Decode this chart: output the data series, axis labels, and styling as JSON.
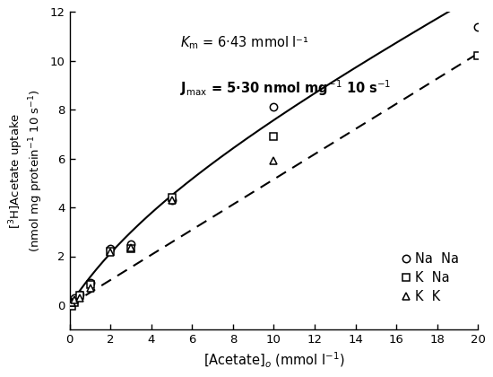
{
  "Km": 6.43,
  "Jmax": 5.3,
  "k_linear": 0.435,
  "NaNa_x": [
    0.1,
    0.25,
    0.5,
    1.0,
    2.0,
    3.0,
    5.0,
    10.0,
    20.0
  ],
  "NaNa_y": [
    0.15,
    0.3,
    0.45,
    0.9,
    2.3,
    2.5,
    4.3,
    8.1,
    11.4
  ],
  "KNa_x": [
    0.1,
    0.25,
    0.5,
    1.0,
    2.0,
    3.0,
    5.0,
    10.0,
    20.0
  ],
  "KNa_y": [
    -0.05,
    0.1,
    0.4,
    0.85,
    2.2,
    2.3,
    4.4,
    6.9,
    10.2
  ],
  "KK_x": [
    0.1,
    0.25,
    0.5,
    1.0,
    2.0,
    3.0,
    5.0,
    10.0
  ],
  "KK_y": [
    0.1,
    0.2,
    0.3,
    0.7,
    2.15,
    2.35,
    4.3,
    5.9
  ],
  "dashed_slope": 0.515,
  "dashed_intercept": 0.0,
  "xlim": [
    0,
    20
  ],
  "ylim": [
    -1,
    12
  ],
  "xticks": [
    0,
    2,
    4,
    6,
    8,
    10,
    12,
    14,
    16,
    18,
    20
  ],
  "yticks": [
    0,
    2,
    4,
    6,
    8,
    10,
    12
  ],
  "xlabel": "[Acetate]$_o$ (mmol l$^{-1}$)",
  "ylabel": "[$^3$H]Acetate uptake\n(nmol mg protein$^{-1}$ 10 s$^{-1}$)",
  "km_label": "$K_{\\rm m}$ = 6·43 mmol l⁻¹",
  "jmax_label": "J$_{\\rm max}$ = 5·30 nmol mg$^{-1}$ 10 s$^{-1}$",
  "legend_labels": [
    "Na  Na",
    "K  Na",
    "K  K"
  ],
  "bg_color": "#ffffff",
  "fig_width": 5.5,
  "fig_height": 4.2
}
